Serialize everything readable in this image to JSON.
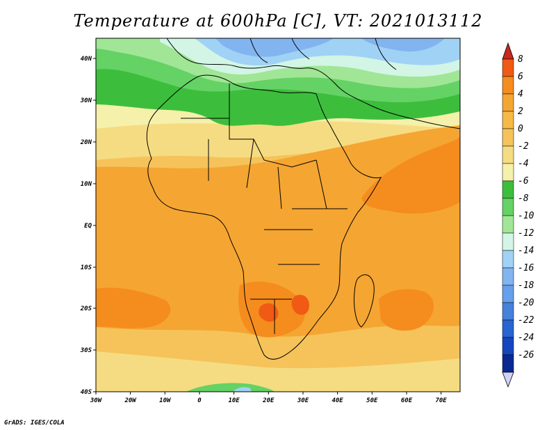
{
  "title": "Temperature at 600hPa [C], VT: 2021013112",
  "credit": "GrADS: IGES/COLA",
  "map": {
    "x_ticks": [
      "30W",
      "20W",
      "10W",
      "0",
      "10E",
      "20E",
      "30E",
      "40E",
      "50E",
      "60E",
      "70E"
    ],
    "y_ticks": [
      "40N",
      "30N",
      "20N",
      "10N",
      "EQ",
      "10S",
      "20S",
      "30S",
      "40S"
    ]
  },
  "colorbar": {
    "labels": [
      "8",
      "6",
      "4",
      "2",
      "0",
      "-2",
      "-4",
      "-6",
      "-8",
      "-10",
      "-12",
      "-14",
      "-16",
      "-18",
      "-20",
      "-22",
      "-24",
      "-26"
    ],
    "colors": [
      "#c8281e",
      "#f05a14",
      "#f58c1e",
      "#f5a532",
      "#f5c35a",
      "#f5dc82",
      "#f5f0aa",
      "#3cbe3c",
      "#64d264",
      "#a0e696",
      "#d2f5e6",
      "#a0d2f5",
      "#82b4f0",
      "#64a0eb",
      "#4682dc",
      "#2864d2",
      "#1446be",
      "#0a2891",
      "#d2d2f5"
    ]
  }
}
